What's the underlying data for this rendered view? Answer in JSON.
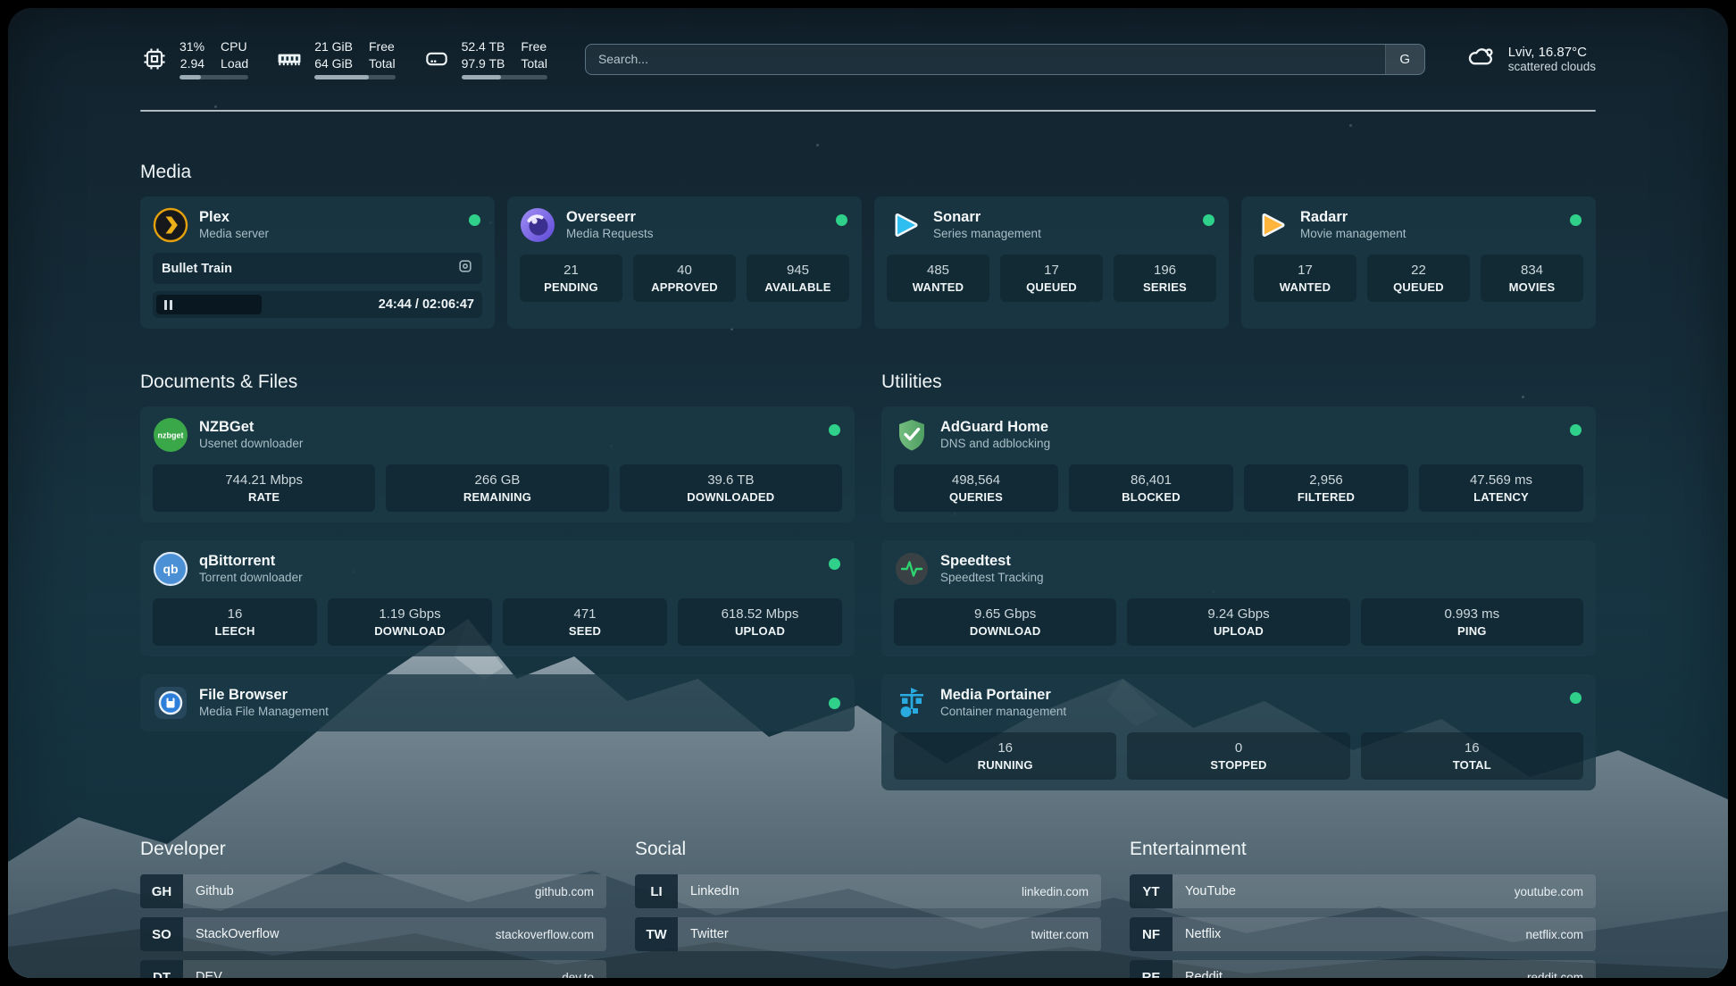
{
  "header": {
    "stats": [
      {
        "line1_value": "31%",
        "line2_value": "2.94",
        "line1_label": "CPU",
        "line2_label": "Load",
        "progress_pct": 31
      },
      {
        "line1_value": "21 GiB",
        "line2_value": "64 GiB",
        "line1_label": "Free",
        "line2_label": "Total",
        "progress_pct": 67
      },
      {
        "line1_value": "52.4 TB",
        "line2_value": "97.9 TB",
        "line1_label": "Free",
        "line2_label": "Total",
        "progress_pct": 46
      }
    ],
    "search_placeholder": "Search...",
    "search_button": "G",
    "weather": {
      "summary": "Lviv, 16.87°C",
      "condition": "scattered clouds"
    }
  },
  "media": {
    "title": "Media",
    "plex": {
      "title": "Plex",
      "subtitle": "Media server",
      "now_playing": "Bullet Train",
      "time": "24:44 / 02:06:47"
    },
    "cards": [
      {
        "title": "Overseerr",
        "subtitle": "Media Requests",
        "stats": [
          {
            "value": "21",
            "label": "PENDING"
          },
          {
            "value": "40",
            "label": "APPROVED"
          },
          {
            "value": "945",
            "label": "AVAILABLE"
          }
        ]
      },
      {
        "title": "Sonarr",
        "subtitle": "Series management",
        "stats": [
          {
            "value": "485",
            "label": "WANTED"
          },
          {
            "value": "17",
            "label": "QUEUED"
          },
          {
            "value": "196",
            "label": "SERIES"
          }
        ]
      },
      {
        "title": "Radarr",
        "subtitle": "Movie management",
        "stats": [
          {
            "value": "17",
            "label": "WANTED"
          },
          {
            "value": "22",
            "label": "QUEUED"
          },
          {
            "value": "834",
            "label": "MOVIES"
          }
        ]
      }
    ]
  },
  "documents": {
    "title": "Documents & Files",
    "cards": [
      {
        "title": "NZBGet",
        "subtitle": "Usenet downloader",
        "stats": [
          {
            "value": "744.21 Mbps",
            "label": "RATE"
          },
          {
            "value": "266 GB",
            "label": "REMAINING"
          },
          {
            "value": "39.6 TB",
            "label": "DOWNLOADED"
          }
        ]
      },
      {
        "title": "qBittorrent",
        "subtitle": "Torrent downloader",
        "stats": [
          {
            "value": "16",
            "label": "LEECH"
          },
          {
            "value": "1.19 Gbps",
            "label": "DOWNLOAD"
          },
          {
            "value": "471",
            "label": "SEED"
          },
          {
            "value": "618.52 Mbps",
            "label": "UPLOAD"
          }
        ]
      },
      {
        "title": "File Browser",
        "subtitle": "Media File Management",
        "stats": []
      }
    ]
  },
  "utilities": {
    "title": "Utilities",
    "cards": [
      {
        "title": "AdGuard Home",
        "subtitle": "DNS and adblocking",
        "stats": [
          {
            "value": "498,564",
            "label": "QUERIES"
          },
          {
            "value": "86,401",
            "label": "BLOCKED"
          },
          {
            "value": "2,956",
            "label": "FILTERED"
          },
          {
            "value": "47.569 ms",
            "label": "LATENCY"
          }
        ]
      },
      {
        "title": "Speedtest",
        "subtitle": "Speedtest Tracking",
        "stats": [
          {
            "value": "9.65 Gbps",
            "label": "DOWNLOAD"
          },
          {
            "value": "9.24 Gbps",
            "label": "UPLOAD"
          },
          {
            "value": "0.993 ms",
            "label": "PING"
          }
        ]
      },
      {
        "title": "Media Portainer",
        "subtitle": "Container management",
        "stats": [
          {
            "value": "16",
            "label": "RUNNING"
          },
          {
            "value": "0",
            "label": "STOPPED"
          },
          {
            "value": "16",
            "label": "TOTAL"
          }
        ]
      }
    ]
  },
  "bookmarks": [
    {
      "title": "Developer",
      "items": [
        {
          "abbr": "GH",
          "name": "Github",
          "url": "github.com"
        },
        {
          "abbr": "SO",
          "name": "StackOverflow",
          "url": "stackoverflow.com"
        },
        {
          "abbr": "DT",
          "name": "DEV",
          "url": "dev.to"
        }
      ]
    },
    {
      "title": "Social",
      "items": [
        {
          "abbr": "LI",
          "name": "LinkedIn",
          "url": "linkedin.com"
        },
        {
          "abbr": "TW",
          "name": "Twitter",
          "url": "twitter.com"
        }
      ]
    },
    {
      "title": "Entertainment",
      "items": [
        {
          "abbr": "YT",
          "name": "YouTube",
          "url": "youtube.com"
        },
        {
          "abbr": "NF",
          "name": "Netflix",
          "url": "netflix.com"
        },
        {
          "abbr": "RE",
          "name": "Reddit",
          "url": "reddit.com"
        }
      ]
    }
  ],
  "colors": {
    "status_online": "#2fd08a",
    "accent_plex": "#e5a00d",
    "accent_sonarr": "#2fbef0",
    "accent_radarr": "#ffb53c"
  }
}
